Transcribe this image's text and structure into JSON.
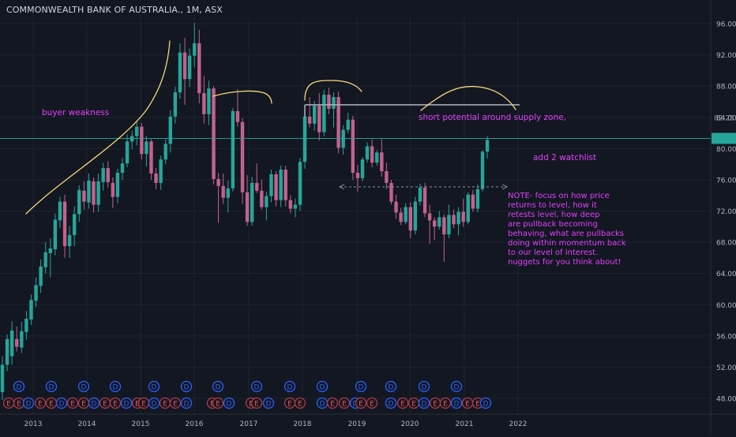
{
  "header": {
    "title": "COMMONWEALTH BANK OF AUSTRALIA., 1M, ASX"
  },
  "colors": {
    "background": "#131722",
    "grid": "#1f2330",
    "bull": "#26a69a",
    "bear": "#c2628f",
    "annotation": "#e040fb",
    "curve": "#f5d87a",
    "zone_line": "#b2b5be",
    "price_line": "#26a69a",
    "axis_text": "#b2b5be"
  },
  "annotations": {
    "buyer_weakness": "buyer weakness",
    "short_potential": "short potential around supply zone,",
    "watchlist": "add 2 watchlist",
    "note": [
      "NOTE- focus on how price",
      "returns to level, how it",
      "retests level, how deep",
      " are pullback becoming",
      " behaving, what are pullbacks",
      " doing within momentum back",
      "to  our level of interest.",
      "nuggets for you think about!"
    ]
  },
  "price_axis": {
    "ticks": [
      "96.00",
      "92.00",
      "88.00",
      "84.00",
      "80.00",
      "76.00",
      "72.00",
      "68.00",
      "64.00",
      "60.00",
      "56.00",
      "52.00",
      "48.00"
    ],
    "overlap_label": "82.25"
  },
  "chart_data": {
    "type": "candlestick",
    "instrument": "COMMONWEALTH BANK OF AUSTRALIA.",
    "interval": "1M",
    "exchange": "ASX",
    "x_axis": {
      "ticks": [
        "2013",
        "2014",
        "2015",
        "2016",
        "2017",
        "2018",
        "2019",
        "2020",
        "2021",
        "2022"
      ]
    },
    "y_axis": {
      "ylim": [
        46.0,
        98.0
      ],
      "grid": true
    },
    "candles": [
      {
        "o": 48.8,
        "h": 53.4,
        "l": 47.8,
        "c": 52.3
      },
      {
        "o": 52.3,
        "h": 56.2,
        "l": 51.5,
        "c": 55.6
      },
      {
        "o": 53.4,
        "h": 57.9,
        "l": 52.3,
        "c": 56.7
      },
      {
        "o": 55.6,
        "h": 57.2,
        "l": 54.0,
        "c": 54.6
      },
      {
        "o": 54.5,
        "h": 57.8,
        "l": 53.8,
        "c": 56.6
      },
      {
        "o": 56.5,
        "h": 59.2,
        "l": 55.5,
        "c": 58.2
      },
      {
        "o": 58.1,
        "h": 61.3,
        "l": 57.4,
        "c": 60.6
      },
      {
        "o": 60.5,
        "h": 63.5,
        "l": 59.7,
        "c": 62.5
      },
      {
        "o": 62.4,
        "h": 65.8,
        "l": 61.5,
        "c": 64.9
      },
      {
        "o": 64.8,
        "h": 68.0,
        "l": 64.0,
        "c": 66.7
      },
      {
        "o": 66.6,
        "h": 68.5,
        "l": 63.5,
        "c": 67.2
      },
      {
        "o": 67.1,
        "h": 71.7,
        "l": 66.3,
        "c": 70.9
      },
      {
        "o": 70.8,
        "h": 73.8,
        "l": 69.8,
        "c": 73.2
      },
      {
        "o": 73.2,
        "h": 74.1,
        "l": 66.0,
        "c": 67.5
      },
      {
        "o": 67.5,
        "h": 70.1,
        "l": 66.0,
        "c": 68.9
      },
      {
        "o": 68.9,
        "h": 72.6,
        "l": 67.5,
        "c": 71.6
      },
      {
        "o": 71.6,
        "h": 75.3,
        "l": 70.6,
        "c": 74.7
      },
      {
        "o": 74.6,
        "h": 75.8,
        "l": 72.2,
        "c": 73.2
      },
      {
        "o": 73.1,
        "h": 76.8,
        "l": 72.3,
        "c": 75.9
      },
      {
        "o": 75.8,
        "h": 76.3,
        "l": 71.8,
        "c": 72.8
      },
      {
        "o": 72.8,
        "h": 76.8,
        "l": 71.9,
        "c": 75.8
      },
      {
        "o": 75.7,
        "h": 78.2,
        "l": 74.6,
        "c": 77.5
      },
      {
        "o": 77.5,
        "h": 78.4,
        "l": 75.0,
        "c": 75.7
      },
      {
        "o": 75.6,
        "h": 76.3,
        "l": 72.4,
        "c": 73.8
      },
      {
        "o": 73.8,
        "h": 77.4,
        "l": 73.0,
        "c": 76.9
      },
      {
        "o": 76.9,
        "h": 78.8,
        "l": 76.0,
        "c": 78.1
      },
      {
        "o": 78.1,
        "h": 81.8,
        "l": 77.6,
        "c": 80.9
      },
      {
        "o": 80.9,
        "h": 82.3,
        "l": 79.9,
        "c": 81.6
      },
      {
        "o": 81.6,
        "h": 83.6,
        "l": 80.4,
        "c": 82.8
      },
      {
        "o": 82.8,
        "h": 83.3,
        "l": 78.6,
        "c": 79.3
      },
      {
        "o": 79.3,
        "h": 81.6,
        "l": 77.7,
        "c": 80.9
      },
      {
        "o": 80.9,
        "h": 81.2,
        "l": 76.0,
        "c": 76.8
      },
      {
        "o": 76.8,
        "h": 77.5,
        "l": 74.8,
        "c": 75.6
      },
      {
        "o": 75.6,
        "h": 79.1,
        "l": 74.7,
        "c": 78.6
      },
      {
        "o": 78.6,
        "h": 81.2,
        "l": 78.0,
        "c": 80.6
      },
      {
        "o": 80.6,
        "h": 84.9,
        "l": 79.5,
        "c": 84.1
      },
      {
        "o": 84.1,
        "h": 87.9,
        "l": 83.2,
        "c": 87.2
      },
      {
        "o": 87.2,
        "h": 93.5,
        "l": 86.4,
        "c": 92.3
      },
      {
        "o": 92.3,
        "h": 94.2,
        "l": 85.6,
        "c": 88.9
      },
      {
        "o": 88.9,
        "h": 92.8,
        "l": 87.9,
        "c": 91.9
      },
      {
        "o": 91.9,
        "h": 96.1,
        "l": 90.4,
        "c": 93.5
      },
      {
        "o": 93.5,
        "h": 95.2,
        "l": 85.8,
        "c": 87.1
      },
      {
        "o": 87.1,
        "h": 89.3,
        "l": 83.2,
        "c": 84.4
      },
      {
        "o": 84.4,
        "h": 88.7,
        "l": 83.0,
        "c": 87.7
      },
      {
        "o": 87.7,
        "h": 88.0,
        "l": 75.4,
        "c": 76.1
      },
      {
        "o": 76.1,
        "h": 76.9,
        "l": 70.5,
        "c": 75.2
      },
      {
        "o": 75.2,
        "h": 76.8,
        "l": 72.9,
        "c": 73.7
      },
      {
        "o": 73.7,
        "h": 75.9,
        "l": 71.8,
        "c": 74.9
      },
      {
        "o": 74.9,
        "h": 85.2,
        "l": 74.5,
        "c": 84.8
      },
      {
        "o": 84.8,
        "h": 87.6,
        "l": 82.8,
        "c": 83.4
      },
      {
        "o": 83.4,
        "h": 83.9,
        "l": 72.9,
        "c": 74.4
      },
      {
        "o": 74.4,
        "h": 76.6,
        "l": 70.1,
        "c": 70.6
      },
      {
        "o": 70.6,
        "h": 76.4,
        "l": 70.1,
        "c": 75.6
      },
      {
        "o": 75.6,
        "h": 78.1,
        "l": 74.3,
        "c": 74.6
      },
      {
        "o": 74.6,
        "h": 76.0,
        "l": 72.2,
        "c": 72.5
      },
      {
        "o": 72.5,
        "h": 74.5,
        "l": 70.8,
        "c": 73.9
      },
      {
        "o": 73.9,
        "h": 77.3,
        "l": 73.1,
        "c": 76.7
      },
      {
        "o": 76.7,
        "h": 77.1,
        "l": 72.6,
        "c": 73.4
      },
      {
        "o": 73.4,
        "h": 77.8,
        "l": 72.5,
        "c": 77.3
      },
      {
        "o": 77.3,
        "h": 77.8,
        "l": 72.6,
        "c": 73.4
      },
      {
        "o": 73.4,
        "h": 74.0,
        "l": 71.7,
        "c": 72.3
      },
      {
        "o": 72.3,
        "h": 73.6,
        "l": 71.2,
        "c": 72.8
      },
      {
        "o": 72.8,
        "h": 78.8,
        "l": 72.0,
        "c": 78.3
      },
      {
        "o": 78.3,
        "h": 84.9,
        "l": 77.4,
        "c": 84.1
      },
      {
        "o": 84.1,
        "h": 86.6,
        "l": 82.7,
        "c": 83.2
      },
      {
        "o": 83.2,
        "h": 86.1,
        "l": 82.3,
        "c": 85.5
      },
      {
        "o": 85.5,
        "h": 87.1,
        "l": 81.0,
        "c": 82.1
      },
      {
        "o": 82.1,
        "h": 87.5,
        "l": 81.6,
        "c": 86.9
      },
      {
        "o": 86.9,
        "h": 87.8,
        "l": 84.4,
        "c": 85.1
      },
      {
        "o": 85.1,
        "h": 87.2,
        "l": 82.7,
        "c": 86.6
      },
      {
        "o": 86.6,
        "h": 87.3,
        "l": 79.4,
        "c": 80.1
      },
      {
        "o": 80.1,
        "h": 83.0,
        "l": 79.2,
        "c": 82.4
      },
      {
        "o": 82.4,
        "h": 84.6,
        "l": 82.0,
        "c": 83.7
      },
      {
        "o": 83.7,
        "h": 84.2,
        "l": 76.0,
        "c": 76.9
      },
      {
        "o": 76.9,
        "h": 77.9,
        "l": 74.5,
        "c": 76.2
      },
      {
        "o": 76.2,
        "h": 78.9,
        "l": 75.8,
        "c": 78.6
      },
      {
        "o": 78.6,
        "h": 80.8,
        "l": 78.2,
        "c": 80.3
      },
      {
        "o": 80.3,
        "h": 81.2,
        "l": 77.6,
        "c": 78.2
      },
      {
        "o": 78.2,
        "h": 79.8,
        "l": 77.8,
        "c": 79.5
      },
      {
        "o": 79.5,
        "h": 81.2,
        "l": 76.4,
        "c": 77.1
      },
      {
        "o": 77.1,
        "h": 78.2,
        "l": 74.8,
        "c": 75.6
      },
      {
        "o": 75.6,
        "h": 76.0,
        "l": 72.8,
        "c": 73.2
      },
      {
        "o": 73.2,
        "h": 74.1,
        "l": 71.0,
        "c": 71.8
      },
      {
        "o": 71.8,
        "h": 72.4,
        "l": 70.2,
        "c": 70.6
      },
      {
        "o": 70.6,
        "h": 73.0,
        "l": 70.3,
        "c": 72.5
      },
      {
        "o": 72.5,
        "h": 73.1,
        "l": 68.5,
        "c": 69.5
      },
      {
        "o": 69.5,
        "h": 73.8,
        "l": 69.0,
        "c": 73.2
      },
      {
        "o": 73.2,
        "h": 75.5,
        "l": 72.7,
        "c": 75.0
      },
      {
        "o": 75.0,
        "h": 75.6,
        "l": 71.2,
        "c": 71.7
      },
      {
        "o": 71.7,
        "h": 72.8,
        "l": 67.8,
        "c": 70.8
      },
      {
        "o": 70.8,
        "h": 71.2,
        "l": 68.3,
        "c": 70.0
      },
      {
        "o": 70.0,
        "h": 72.0,
        "l": 69.6,
        "c": 71.2
      },
      {
        "o": 71.2,
        "h": 71.6,
        "l": 65.5,
        "c": 69.0
      },
      {
        "o": 69.0,
        "h": 72.8,
        "l": 68.5,
        "c": 71.5
      },
      {
        "o": 71.5,
        "h": 72.2,
        "l": 69.8,
        "c": 70.3
      },
      {
        "o": 70.3,
        "h": 72.5,
        "l": 68.9,
        "c": 71.9
      },
      {
        "o": 71.9,
        "h": 73.6,
        "l": 70.0,
        "c": 70.6
      },
      {
        "o": 70.6,
        "h": 74.4,
        "l": 70.3,
        "c": 74.1
      },
      {
        "o": 74.1,
        "h": 74.7,
        "l": 71.9,
        "c": 72.3
      },
      {
        "o": 72.3,
        "h": 75.4,
        "l": 71.8,
        "c": 74.8
      },
      {
        "o": 74.8,
        "h": 79.8,
        "l": 74.5,
        "c": 79.6
      },
      {
        "o": 79.6,
        "h": 81.6,
        "l": 78.7,
        "c": 81.1
      }
    ],
    "current_price": 81.3,
    "levels": [
      {
        "type": "supply_zone",
        "price": 85.6
      },
      {
        "type": "dashed_support",
        "price": 75.1
      }
    ],
    "events": {
      "dividends": 14,
      "earnings": 26
    }
  }
}
